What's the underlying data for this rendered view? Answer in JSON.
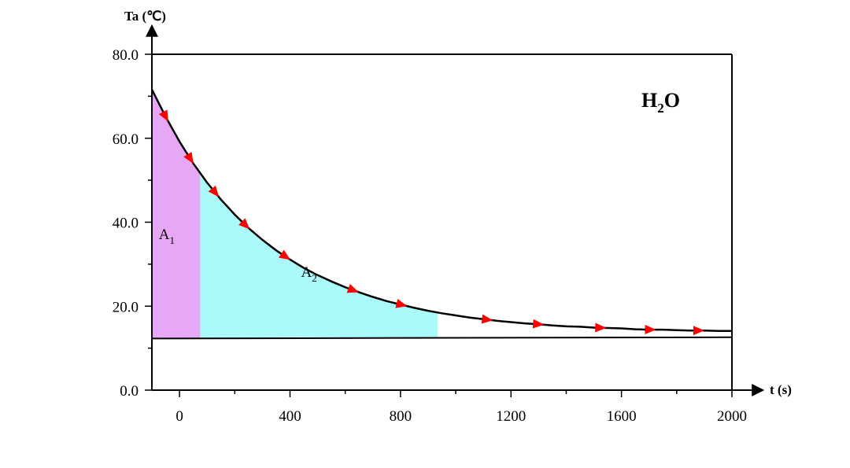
{
  "chart_data": {
    "type": "line",
    "title": "",
    "annotation": {
      "main": "H",
      "sub": "2",
      "tail": "O"
    },
    "xlabel": "t (s)",
    "ylabel": "Ta (℃)",
    "xlim": [
      -100,
      2000
    ],
    "ylim": [
      0,
      80
    ],
    "x_ticks": [
      0,
      400,
      800,
      1200,
      1600,
      2000
    ],
    "x_tick_labels": [
      "0",
      "400",
      "800",
      "1200",
      "1600",
      "2000"
    ],
    "y_ticks": [
      0,
      20,
      40,
      60,
      80
    ],
    "y_tick_labels": [
      "0.0",
      "20.0",
      "40.0",
      "60.0",
      "80.0"
    ],
    "grid": false,
    "baseline": {
      "x": [
        -100,
        2000
      ],
      "y": [
        12.3,
        12.6
      ]
    },
    "series": [
      {
        "color": "#000000",
        "marker": "red-triangle-arrow",
        "marker_color": "#ff0000",
        "x": [
          -100,
          -50,
          0,
          50,
          100,
          150,
          200,
          250,
          300,
          350,
          400,
          450,
          500,
          550,
          600,
          650,
          700,
          750,
          800,
          850,
          900,
          950,
          1000,
          1050,
          1100,
          1150,
          1200,
          1250,
          1300,
          1350,
          1400,
          1450,
          1500,
          1550,
          1600,
          1650,
          1700,
          1750,
          1800,
          1850,
          1900,
          1950,
          2000
        ],
        "y": [
          71.6,
          65.1,
          59.2,
          54.0,
          49.4,
          45.4,
          41.8,
          38.6,
          35.8,
          33.3,
          31.1,
          29.1,
          27.4,
          25.9,
          24.5,
          23.3,
          22.2,
          21.2,
          20.4,
          19.6,
          18.9,
          18.3,
          17.8,
          17.3,
          16.9,
          16.5,
          16.2,
          15.9,
          15.7,
          15.4,
          15.2,
          15.1,
          14.9,
          14.8,
          14.7,
          14.5,
          14.4,
          14.4,
          14.3,
          14.2,
          14.2,
          14.1,
          14.1
        ]
      }
    ],
    "arrow_markers_x": [
      -50,
      40,
      130,
      240,
      385,
      630,
      805,
      1115,
      1300,
      1525,
      1705,
      1880
    ],
    "regions": [
      {
        "label": "A",
        "sub": "1",
        "x_range": [
          -100,
          75
        ],
        "color": "#e6a8f5"
      },
      {
        "label": "A",
        "sub": "2",
        "x_range": [
          75,
          935
        ],
        "color": "#aafafa"
      }
    ]
  }
}
